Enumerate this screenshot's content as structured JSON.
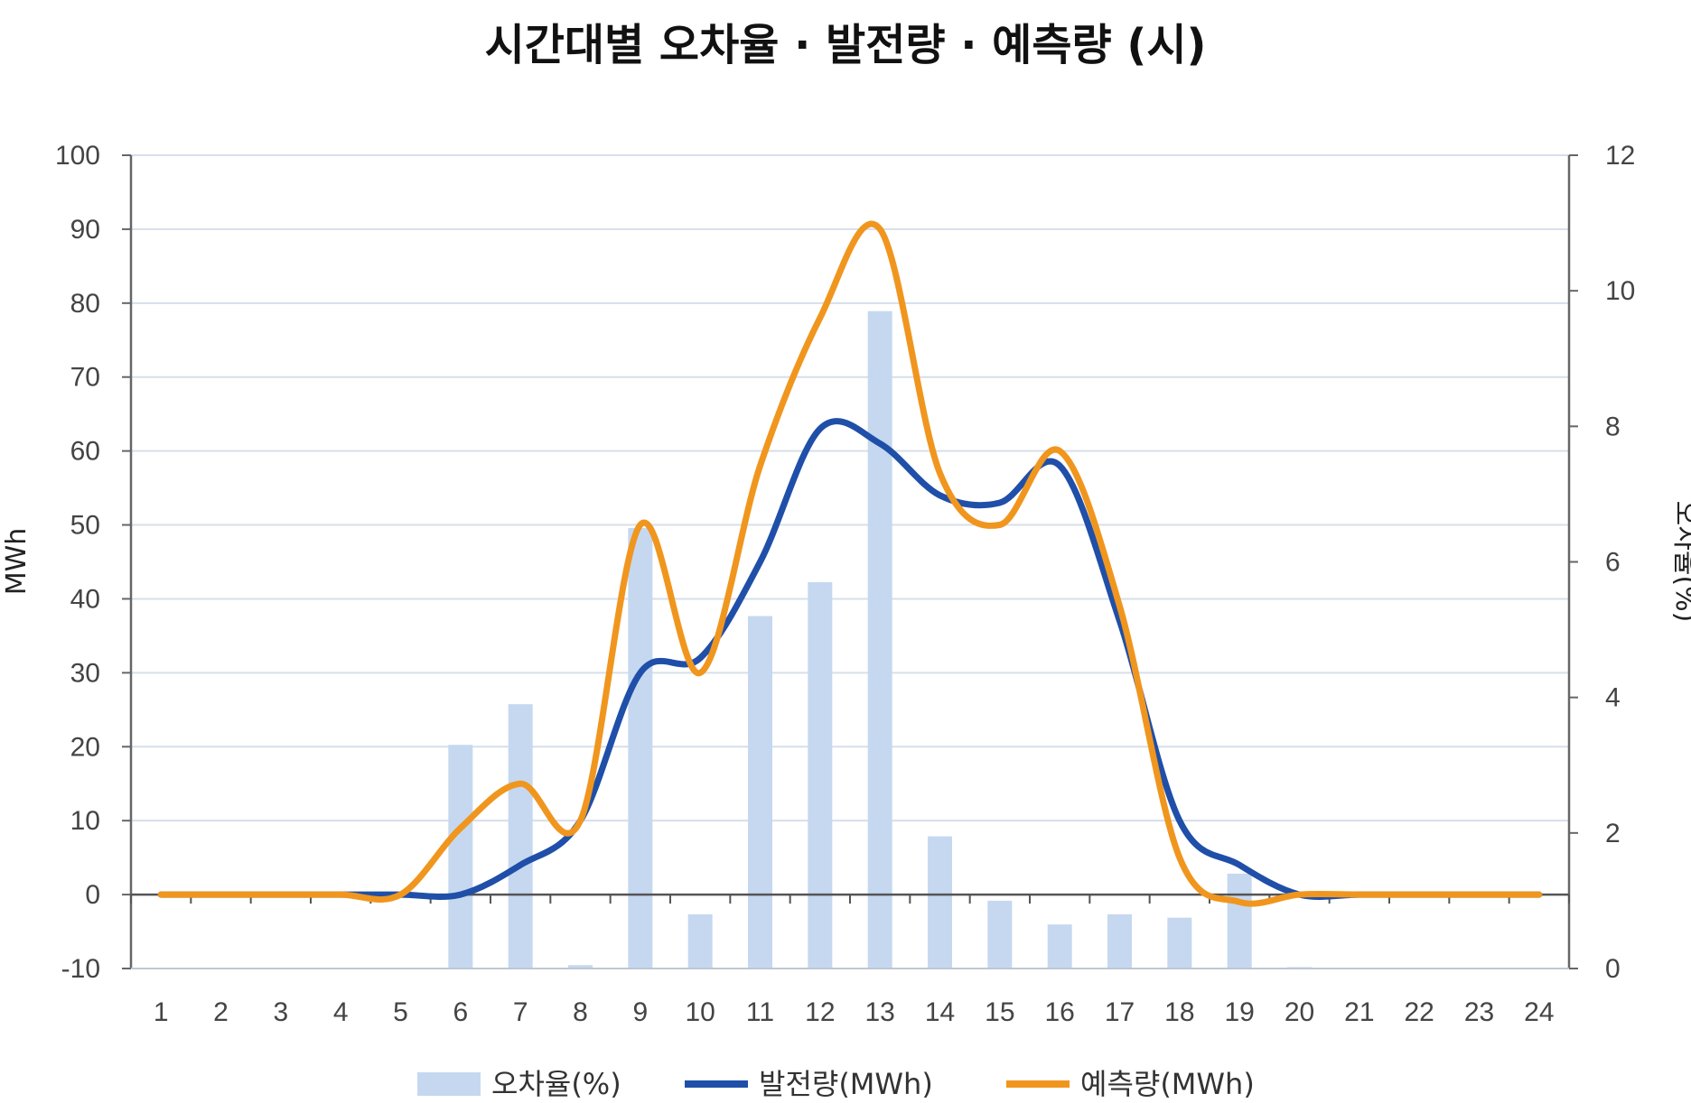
{
  "chart_data": {
    "type": "bar-line-combo",
    "title": "시간대별 오차율 · 발전량 · 예측량 (시)",
    "categories": [
      "1",
      "2",
      "3",
      "4",
      "5",
      "6",
      "7",
      "8",
      "9",
      "10",
      "11",
      "12",
      "13",
      "14",
      "15",
      "16",
      "17",
      "18",
      "19",
      "20",
      "21",
      "22",
      "23",
      "24"
    ],
    "y_left": {
      "label": "MWh",
      "min": -10,
      "max": 100,
      "step": 10
    },
    "y_right": {
      "label": "오차율(%)",
      "min": 0,
      "max": 12,
      "step": 2
    },
    "series": [
      {
        "name": "오차율(%)",
        "kind": "bar",
        "axis": "right",
        "color": "#c5d8f0",
        "values": [
          0,
          0,
          0,
          0,
          0,
          3.3,
          3.9,
          0.05,
          6.5,
          0.8,
          5.2,
          5.7,
          9.7,
          1.95,
          1.0,
          0.65,
          0.8,
          0.75,
          1.4,
          0.02,
          0,
          0,
          0,
          0
        ]
      },
      {
        "name": "발전량(MWh)",
        "kind": "line",
        "axis": "left",
        "color": "#1f4fa8",
        "values": [
          0,
          0,
          0,
          0,
          0,
          0,
          4,
          10,
          30,
          32,
          45,
          63,
          61,
          54,
          53,
          58,
          37,
          10,
          4,
          0,
          0,
          0,
          0,
          0
        ]
      },
      {
        "name": "예측량(MWh)",
        "kind": "line",
        "axis": "left",
        "color": "#f0961e",
        "values": [
          0,
          0,
          0,
          0,
          0,
          9,
          15,
          10,
          50,
          30,
          58,
          78,
          90,
          57,
          50,
          60,
          39,
          5,
          -1,
          0,
          0,
          0,
          0,
          0
        ]
      }
    ],
    "grid": true,
    "legend_position": "bottom"
  }
}
